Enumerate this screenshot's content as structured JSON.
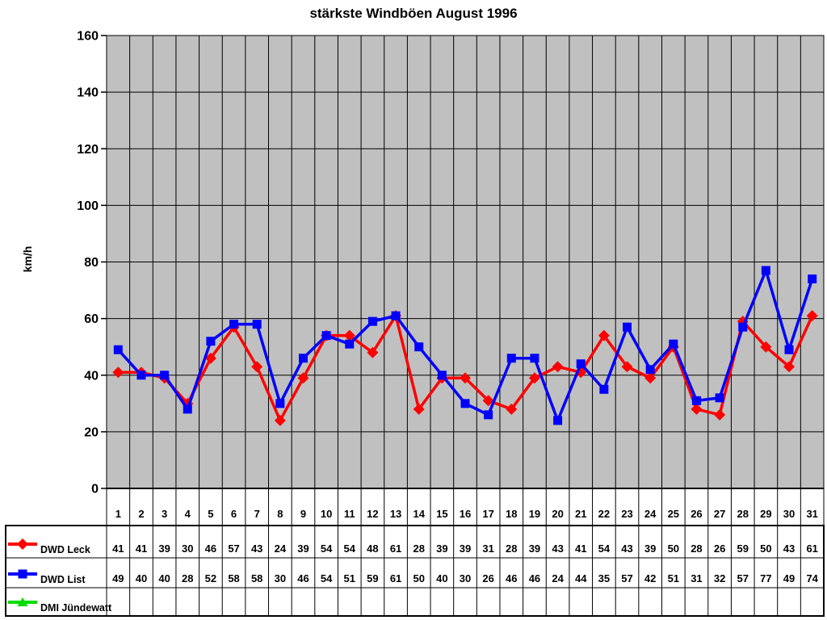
{
  "chart_data": {
    "type": "line",
    "title": "stärkste Windböen August 1996",
    "ylabel": "km/h",
    "xlabel": "",
    "ylim": [
      0,
      160
    ],
    "yticks": [
      0,
      20,
      40,
      60,
      80,
      100,
      120,
      140,
      160
    ],
    "categories": [
      "1",
      "2",
      "3",
      "4",
      "5",
      "6",
      "7",
      "8",
      "9",
      "10",
      "11",
      "12",
      "13",
      "14",
      "15",
      "16",
      "17",
      "18",
      "19",
      "20",
      "21",
      "22",
      "23",
      "24",
      "25",
      "26",
      "27",
      "28",
      "29",
      "30",
      "31"
    ],
    "series": [
      {
        "name": "DWD Leck",
        "color": "#FF0000",
        "marker": "diamond",
        "values": [
          41,
          41,
          39,
          30,
          46,
          57,
          43,
          24,
          39,
          54,
          54,
          48,
          61,
          28,
          39,
          39,
          31,
          28,
          39,
          43,
          41,
          54,
          43,
          39,
          50,
          28,
          26,
          59,
          50,
          43,
          61
        ]
      },
      {
        "name": "DWD List",
        "color": "#0000FF",
        "marker": "square",
        "values": [
          49,
          40,
          40,
          28,
          52,
          58,
          58,
          30,
          46,
          54,
          51,
          59,
          61,
          50,
          40,
          30,
          26,
          46,
          46,
          24,
          44,
          35,
          57,
          42,
          51,
          31,
          32,
          57,
          77,
          49,
          74
        ]
      },
      {
        "name": "DMI Jündewatt",
        "color": "#00DC00",
        "marker": "triangle",
        "values": []
      }
    ],
    "plot_background": "#C0C0C0",
    "gridline_color": "#000000",
    "grid": "both",
    "legend_position": "data-table-left",
    "data_table_shown": true
  }
}
